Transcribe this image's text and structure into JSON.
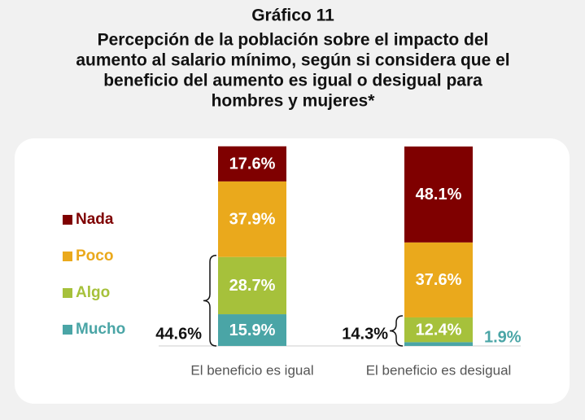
{
  "chart_data": {
    "type": "stacked_bar",
    "title": "Gráfico 11",
    "subtitle": [
      "Percepción de la población sobre el impacto del",
      "aumento al salario mínimo, según si considera que el",
      "beneficio del aumento es igual o desigual para",
      "hombres y mujeres*"
    ],
    "categories": [
      "El beneficio es igual",
      "El beneficio es desigual"
    ],
    "series": [
      {
        "name": "Mucho",
        "color": "#4aa5a6",
        "values": [
          15.9,
          1.9
        ],
        "value_labels": [
          "15.9%",
          "1.9%"
        ]
      },
      {
        "name": "Algo",
        "color": "#a6c13b",
        "values": [
          28.7,
          12.4
        ],
        "value_labels": [
          "28.7%",
          "12.4%"
        ]
      },
      {
        "name": "Poco",
        "color": "#eaa91c",
        "values": [
          37.9,
          37.6
        ],
        "value_labels": [
          "37.9%",
          "37.6%"
        ]
      },
      {
        "name": "Nada",
        "color": "#7f0000",
        "values": [
          17.6,
          48.1
        ],
        "value_labels": [
          "17.6%",
          "48.1%"
        ]
      }
    ],
    "brace_labels": [
      "44.6%",
      "14.3%"
    ],
    "ylim": [
      0,
      100
    ]
  }
}
